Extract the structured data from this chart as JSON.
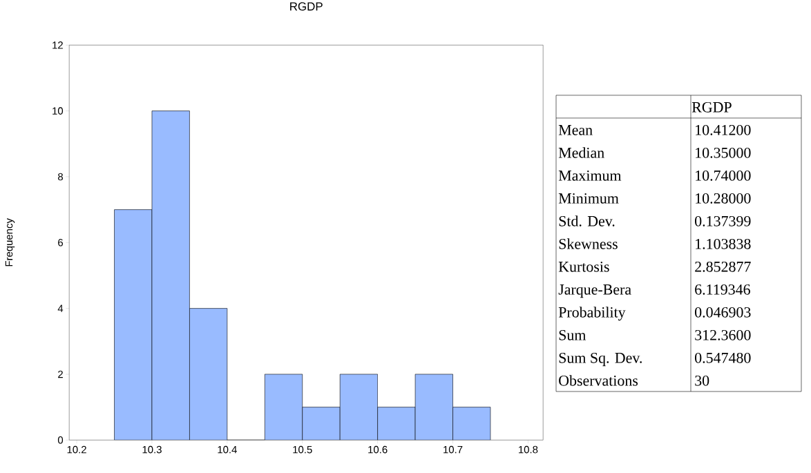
{
  "chart_data": [
    {
      "type": "histogram",
      "title": "RGDP",
      "ylabel": "Frequency",
      "bins": [
        10.25,
        10.3,
        10.35,
        10.4,
        10.45,
        10.5,
        10.55,
        10.6,
        10.65,
        10.7,
        10.75
      ],
      "values": [
        7,
        10,
        4,
        0,
        2,
        1,
        2,
        1,
        2,
        1
      ],
      "color": "#99bbff",
      "xlim": [
        10.19,
        10.82
      ],
      "ylim": [
        0,
        12
      ],
      "xticks": [
        10.2,
        10.3,
        10.4,
        10.5,
        10.6,
        10.7,
        10.8
      ],
      "yticks": [
        0,
        2,
        4,
        6,
        8,
        10,
        12
      ],
      "grid": false
    },
    {
      "type": "other",
      "title": "RGDP",
      "categories": [
        "Mean",
        "Median",
        "Maximum",
        "Minimum",
        "Std. Dev.",
        "Skewness",
        "Kurtosis",
        "Jarque-Bera",
        "Probability",
        "Sum",
        "Sum Sq. Dev.",
        "Observations"
      ],
      "value_labels": [
        "10.41200",
        "10.35000",
        "10.74000",
        "10.28000",
        "0.137399",
        "1.103838",
        "2.852877",
        "6.119346",
        "0.046903",
        "312.3600",
        "0.547480",
        "30"
      ]
    }
  ]
}
